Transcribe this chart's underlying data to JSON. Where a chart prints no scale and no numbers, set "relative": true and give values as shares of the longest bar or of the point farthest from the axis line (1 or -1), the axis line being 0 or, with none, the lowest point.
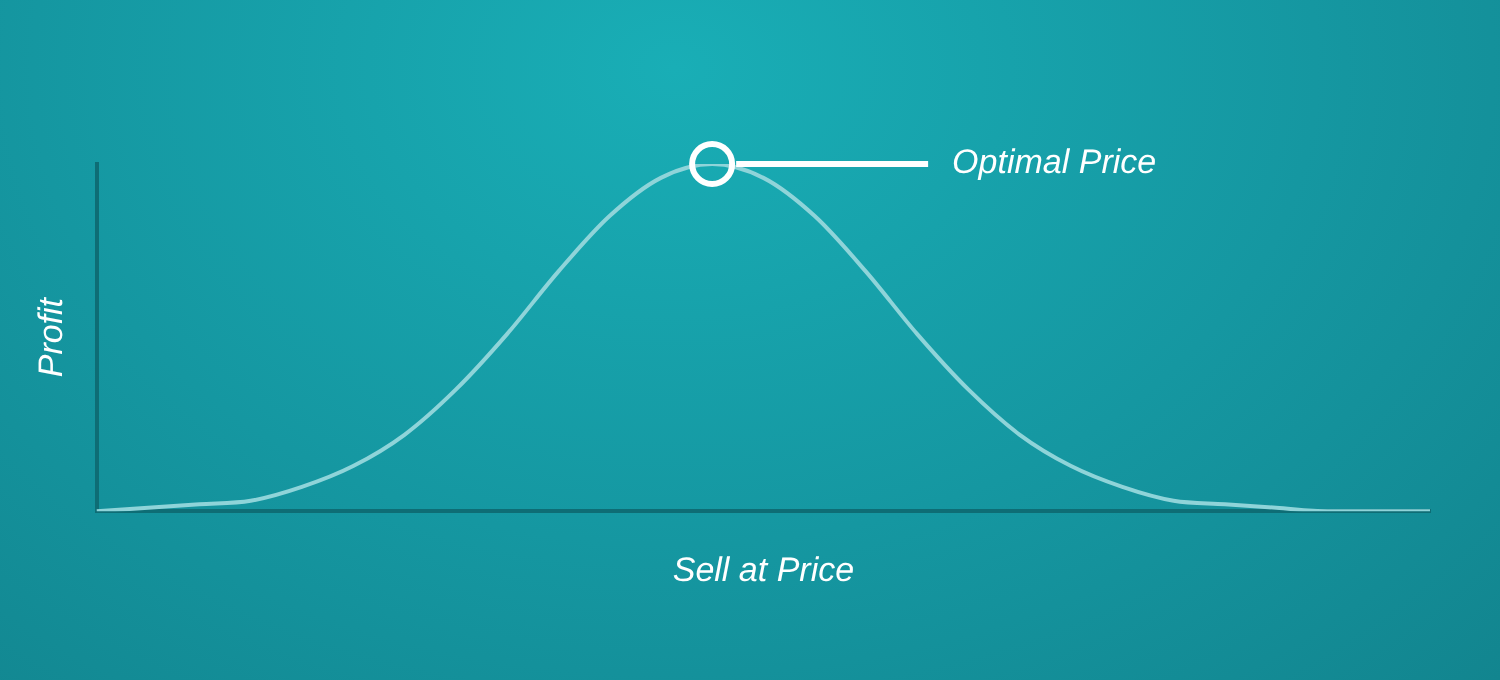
{
  "chart_data": {
    "type": "line",
    "relative": true,
    "xlabel": "Sell at Price",
    "ylabel": "Profit",
    "categories": [
      null,
      null,
      null,
      null,
      null,
      null,
      null,
      null,
      null,
      null,
      null,
      null,
      null,
      null,
      null,
      null,
      null,
      null,
      null,
      null,
      null,
      null,
      null,
      null,
      null,
      null,
      null
    ],
    "series": [
      {
        "color": "#8fd4d9",
        "values": [
          0,
          0.01,
          0.02,
          0.03,
          0.07,
          0.13,
          0.22,
          0.35,
          0.51,
          0.69,
          0.85,
          0.96,
          1,
          0.96,
          0.85,
          0.69,
          0.51,
          0.35,
          0.22,
          0.13,
          0.07,
          0.03,
          0.02,
          0.01,
          0,
          0,
          0
        ]
      }
    ],
    "annotations": [
      "Optimal Price"
    ],
    "grid": false,
    "legend": false,
    "marker": "none",
    "line_style": "solid"
  }
}
